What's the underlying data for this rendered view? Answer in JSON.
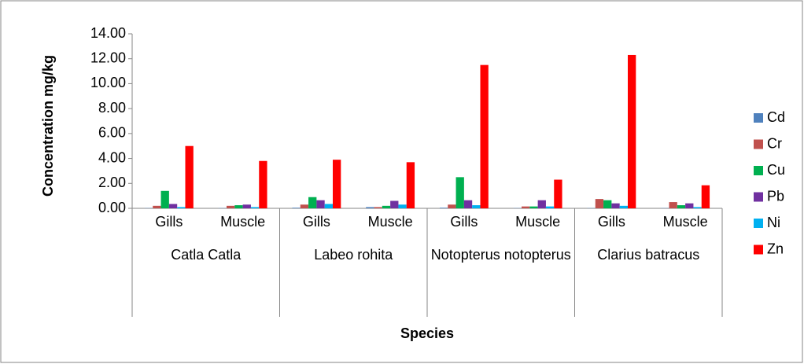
{
  "chart_data": {
    "type": "bar",
    "ylabel": "Concentration  mg/kg",
    "xlabel": "Species",
    "categories": [
      "Gills",
      "Muscle",
      "Gills",
      "Muscle",
      "Gills",
      "Muscle",
      "Gills",
      "Muscle"
    ],
    "groups": [
      "Catla Catla",
      "Labeo rohita",
      "Notopterus notopterus",
      "Clarius batracus"
    ],
    "series": [
      {
        "name": "Cd",
        "color": "#4f81bd",
        "values": [
          0.02,
          0.02,
          0.05,
          0.1,
          0.05,
          0.02,
          0.02,
          0.02
        ]
      },
      {
        "name": "Cr",
        "color": "#c0504d",
        "values": [
          0.2,
          0.2,
          0.3,
          0.1,
          0.3,
          0.15,
          0.75,
          0.5
        ]
      },
      {
        "name": "Cu",
        "color": "#00b050",
        "values": [
          1.4,
          0.25,
          0.9,
          0.2,
          2.5,
          0.15,
          0.65,
          0.25
        ]
      },
      {
        "name": "Pb",
        "color": "#7030a0",
        "values": [
          0.35,
          0.3,
          0.65,
          0.6,
          0.65,
          0.65,
          0.4,
          0.4
        ]
      },
      {
        "name": "Ni",
        "color": "#00b0f0",
        "values": [
          0.1,
          0.1,
          0.35,
          0.3,
          0.25,
          0.15,
          0.2,
          0.1
        ]
      },
      {
        "name": "Zn",
        "color": "#ff0000",
        "values": [
          5.0,
          3.8,
          3.9,
          3.7,
          11.5,
          2.3,
          12.3,
          1.85
        ]
      }
    ],
    "ylim": [
      0,
      14
    ],
    "yticks": [
      {
        "value": 0,
        "label": "0.00"
      },
      {
        "value": 2,
        "label": "2.00"
      },
      {
        "value": 4,
        "label": "4.00"
      },
      {
        "value": 6,
        "label": "6.00"
      },
      {
        "value": 8,
        "label": "8.00"
      },
      {
        "value": 10,
        "label": "10.00"
      },
      {
        "value": 12,
        "label": "12.00"
      },
      {
        "value": 14,
        "label": "14.00"
      }
    ],
    "legend": "right"
  }
}
